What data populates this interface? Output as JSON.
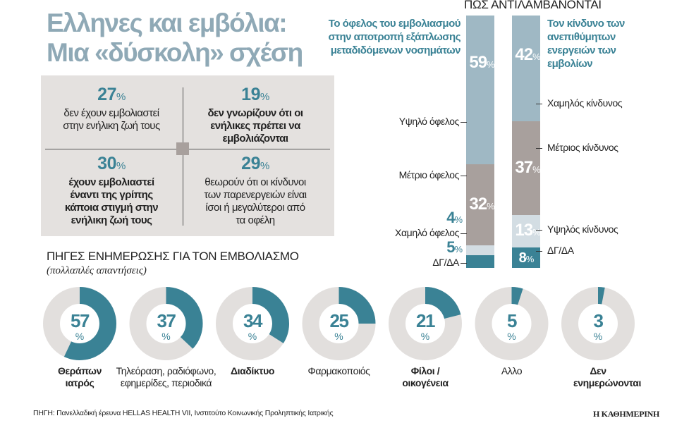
{
  "title": [
    "Ελληνες και εμβόλια:",
    "Μια «δύσκολη» σχέση"
  ],
  "stats": [
    {
      "pct": "27",
      "text": "δεν έχουν εμβολιαστεί στην ενήλικη ζωή τους",
      "bold": false
    },
    {
      "pct": "19",
      "text": "δεν γνωρίζουν ότι οι ενήλικες πρέπει να εμβολιάζονται",
      "bold": true
    },
    {
      "pct": "30",
      "text": "έχουν εμβολιαστεί έναντι της γρίπης κάποια στιγμή στην ενήλικη ζωή τους",
      "bold": true
    },
    {
      "pct": "29",
      "text": "θεωρούν ότι οι κίνδυνοι των παρενεργειών είναι ίσοι ή μεγαλύτεροι από τα οφέλη",
      "bold": false
    }
  ],
  "percent_sign": "%",
  "colors": {
    "teal": "#3a8295",
    "light_blue": "#9fb8c4",
    "gray": "#a8a09d",
    "pale": "#d3dde3",
    "donut_bg": "#e2dfdd"
  },
  "chart_data": [
    {
      "type": "bar",
      "stacked": true,
      "title": "ΠΩΣ ΑΝΤΙΛΑΜΒΑΝΟΝΤΑΙ",
      "series": [
        {
          "name": "Το όφελος του εμβολιασμού στην αποτροπή εξάπλωσης μεταδιδόμενων νοσημάτων",
          "segments": [
            {
              "label": "Υψηλό όφελος",
              "value": 59,
              "color": "#9fb8c4"
            },
            {
              "label": "Μέτριο όφελος",
              "value": 32,
              "color": "#a8a09d"
            },
            {
              "label": "Χαμηλό όφελος",
              "value": 4,
              "color": "#d3dde3"
            },
            {
              "label": "ΔΓ/ΔΑ",
              "value": 5,
              "color": "#3a8295"
            }
          ]
        },
        {
          "name": "Τον κίνδυνο των ανεπιθύμητων ενεργειών των εμβολίων",
          "segments": [
            {
              "label": "Χαμηλός κίνδυνος",
              "value": 42,
              "color": "#9fb8c4"
            },
            {
              "label": "Μέτριος κίνδυνος",
              "value": 37,
              "color": "#a8a09d"
            },
            {
              "label": "Υψηλός κίνδυνος",
              "value": 13,
              "color": "#d3dde3"
            },
            {
              "label": "ΔΓ/ΔΑ",
              "value": 8,
              "color": "#3a8295"
            }
          ]
        }
      ]
    },
    {
      "type": "pie",
      "donut": true,
      "title": "ΠΗΓΕΣ ΕΝΗΜΕΡΩΣΗΣ ΓΙΑ ΤΟΝ ΕΜΒΟΛΙΑΣΜΟ",
      "subtitle": "(πολλαπλές απαντήσεις)",
      "items": [
        {
          "label": "Θεράπων ιατρός",
          "value": 57,
          "bold": true
        },
        {
          "label": "Τηλεόραση, ραδιόφωνο, εφημερίδες, περιοδικά",
          "value": 37,
          "bold": false
        },
        {
          "label": "Διαδίκτυο",
          "value": 34,
          "bold": true
        },
        {
          "label": "Φαρμακοποιός",
          "value": 25,
          "bold": false
        },
        {
          "label": "Φίλοι /οικογένεια",
          "value": 21,
          "bold": true
        },
        {
          "label": "Αλλο",
          "value": 5,
          "bold": false
        },
        {
          "label": "Δεν ενημερώνονται",
          "value": 3,
          "bold": true
        }
      ]
    }
  ],
  "source": "ΠΗΓΗ: Πανελλαδική έρευνα HELLAS HEALTH VII, Ινστιτούτο Κοινωνικής Προληπτικής Ιατρικής",
  "brand": "Η ΚΑΘΗΜΕΡΙΝΗ"
}
